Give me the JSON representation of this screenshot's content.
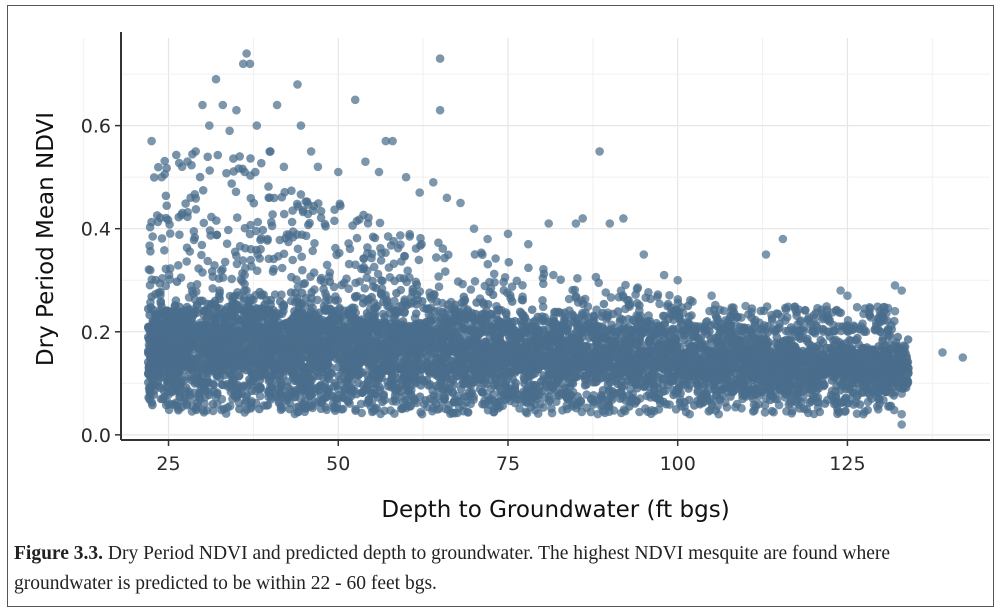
{
  "chart_data": {
    "type": "scatter",
    "title": "",
    "xlabel": "Depth to Groundwater (ft bgs)",
    "ylabel": "Dry Period Mean NDVI",
    "xlim": [
      18,
      146
    ],
    "ylim": [
      -0.01,
      0.77
    ],
    "x_ticks": [
      25,
      50,
      75,
      100,
      125
    ],
    "y_ticks": [
      0.0,
      0.2,
      0.4,
      0.6
    ],
    "x_tick_labels": [
      "25",
      "50",
      "75",
      "100",
      "125"
    ],
    "y_tick_labels": [
      "0.0",
      "0.2",
      "0.4",
      "0.6"
    ],
    "grid": true,
    "marker_color": "#4a6d8c",
    "series": [
      {
        "values_description_points": [
          [
            22.5,
            0.57
          ],
          [
            24,
            0.5
          ],
          [
            27,
            0.52
          ],
          [
            29,
            0.55
          ],
          [
            30,
            0.64
          ],
          [
            31,
            0.6
          ],
          [
            32,
            0.69
          ],
          [
            33,
            0.64
          ],
          [
            34,
            0.59
          ],
          [
            35,
            0.63
          ],
          [
            36,
            0.72
          ],
          [
            36.5,
            0.74
          ],
          [
            37,
            0.72
          ],
          [
            38,
            0.6
          ],
          [
            40,
            0.55
          ],
          [
            41,
            0.64
          ],
          [
            42,
            0.52
          ],
          [
            44,
            0.68
          ],
          [
            44.5,
            0.6
          ],
          [
            46,
            0.55
          ],
          [
            47,
            0.52
          ],
          [
            50,
            0.51
          ],
          [
            52.5,
            0.65
          ],
          [
            54,
            0.53
          ],
          [
            56,
            0.51
          ],
          [
            57,
            0.57
          ],
          [
            58,
            0.57
          ],
          [
            60,
            0.5
          ],
          [
            62,
            0.47
          ],
          [
            64,
            0.49
          ],
          [
            65,
            0.73
          ],
          [
            65,
            0.63
          ],
          [
            66,
            0.46
          ],
          [
            68,
            0.45
          ],
          [
            70,
            0.4
          ],
          [
            72,
            0.38
          ],
          [
            75,
            0.39
          ],
          [
            78,
            0.37
          ],
          [
            81,
            0.41
          ],
          [
            85,
            0.41
          ],
          [
            86,
            0.42
          ],
          [
            88.5,
            0.55
          ],
          [
            90,
            0.41
          ],
          [
            92,
            0.42
          ],
          [
            95,
            0.35
          ],
          [
            98,
            0.31
          ],
          [
            100,
            0.3
          ],
          [
            105,
            0.27
          ],
          [
            110,
            0.25
          ],
          [
            113,
            0.35
          ],
          [
            115.5,
            0.38
          ],
          [
            118,
            0.22
          ],
          [
            124,
            0.28
          ],
          [
            125,
            0.27
          ],
          [
            127,
            0.21
          ],
          [
            130,
            0.22
          ],
          [
            132,
            0.29
          ],
          [
            133,
            0.28
          ],
          [
            132,
            0.24
          ],
          [
            133,
            0.08
          ],
          [
            133,
            0.02
          ],
          [
            133,
            0.04
          ],
          [
            139,
            0.16
          ],
          [
            142,
            0.15
          ],
          [
            134,
            0.12
          ]
        ]
      }
    ]
  },
  "caption": {
    "figure_label": "Figure 3.3.",
    "text": " Dry Period NDVI and predicted depth to groundwater. The highest NDVI mesquite are found where groundwater is predicted to be within 22 - 60 feet bgs."
  }
}
